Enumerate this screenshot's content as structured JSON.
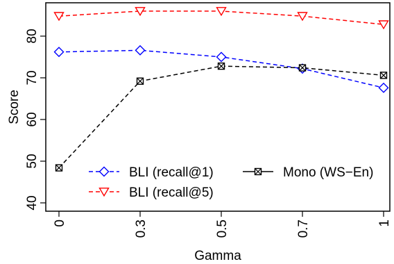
{
  "chart_data": {
    "type": "line",
    "x_categories": [
      "0",
      "0.3",
      "0.5",
      "0.7",
      "1"
    ],
    "xlabel": "Gamma",
    "ylabel": "Score",
    "ylim": [
      38,
      88
    ],
    "yticks": [
      40,
      50,
      60,
      70,
      80
    ],
    "grid": false,
    "legend_placement": "bottom-right",
    "series": [
      {
        "name": "BLI (recall@1)",
        "color": "#0000ff",
        "marker": "diamond",
        "values": [
          76.2,
          76.6,
          75.0,
          72.2,
          67.6
        ]
      },
      {
        "name": "BLI (recall@5)",
        "color": "#ff0000",
        "marker": "triangle-down",
        "values": [
          84.8,
          86.0,
          86.0,
          84.8,
          82.8
        ]
      },
      {
        "name": "Mono (WS−En)",
        "color": "#000000",
        "marker": "boxed-x",
        "values": [
          48.4,
          69.2,
          72.8,
          72.4,
          70.6
        ]
      }
    ]
  }
}
